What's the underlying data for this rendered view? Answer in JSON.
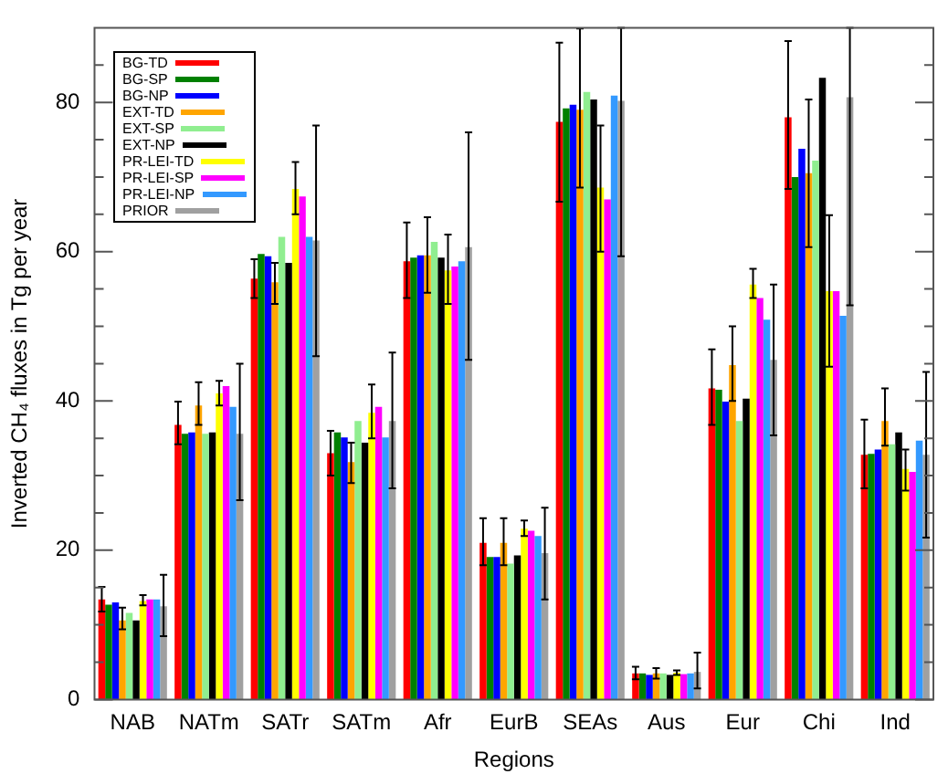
{
  "chart_data": {
    "type": "bar",
    "xlabel": "Regions",
    "ylabel": "Inverted CH₄ fluxes in Tg per year",
    "categories": [
      "NAB",
      "NATm",
      "SATr",
      "SATm",
      "Afr",
      "EurB",
      "SEAs",
      "Aus",
      "Eur",
      "Chi",
      "Ind"
    ],
    "ylim": [
      0,
      90
    ],
    "yticks": [
      0,
      {
        "value": 5,
        "label": null
      },
      {
        "value": 10,
        "label": null
      },
      {
        "value": 15,
        "label": null
      },
      20,
      {
        "value": 25,
        "label": null
      },
      {
        "value": 30,
        "label": null
      },
      {
        "value": 35,
        "label": null
      },
      40,
      {
        "value": 45,
        "label": null
      },
      {
        "value": 50,
        "label": null
      },
      {
        "value": 55,
        "label": null
      },
      60,
      {
        "value": 65,
        "label": null
      },
      {
        "value": 70,
        "label": null
      },
      {
        "value": 75,
        "label": null
      },
      80,
      {
        "value": 85,
        "label": null
      }
    ],
    "grid": false,
    "legend": "top left",
    "series": [
      {
        "name": "BG-TD",
        "color": "#ff0000",
        "values": [
          13.4,
          36.8,
          56.4,
          33,
          58.7,
          21,
          77.4,
          3.5,
          41.7,
          78,
          32.8
        ],
        "errors": [
          [
            11.8,
            15.1
          ],
          [
            34.2,
            39.9
          ],
          [
            53.8,
            59
          ],
          [
            30,
            36
          ],
          [
            53.8,
            63.9
          ],
          [
            18,
            24.3
          ],
          [
            66.7,
            88
          ],
          [
            2.7,
            4.4
          ],
          [
            36.8,
            46.9
          ],
          [
            68.4,
            88.2
          ],
          [
            28.3,
            37.5
          ]
        ]
      },
      {
        "name": "BG-SP",
        "color": "#008000",
        "values": [
          12.7,
          35.6,
          59.7,
          35.8,
          59.2,
          19.1,
          79.2,
          3.5,
          41.5,
          70,
          32.9
        ]
      },
      {
        "name": "BG-NP",
        "color": "#0000ff",
        "values": [
          13,
          35.8,
          59.4,
          35.1,
          59.5,
          19.1,
          79.7,
          3.3,
          39.9,
          73.8,
          33.5
        ]
      },
      {
        "name": "EXT-TD",
        "color": "#ffa500",
        "values": [
          10.6,
          39.4,
          55.9,
          31.8,
          59.5,
          21,
          79,
          3.5,
          44.8,
          70.5,
          37.3
        ],
        "errors": [
          [
            9.4,
            12.3
          ],
          [
            36.8,
            42.5
          ],
          [
            53,
            58.5
          ],
          [
            29,
            34.4
          ],
          [
            54.5,
            64.6
          ],
          [
            18,
            24.3
          ],
          [
            68.6,
            89.9
          ],
          [
            2.8,
            4.2
          ],
          [
            40,
            50
          ],
          [
            60.6,
            80.4
          ],
          [
            34,
            41.7
          ]
        ]
      },
      {
        "name": "EXT-SP",
        "color": "#90ee90",
        "values": [
          11.6,
          35.6,
          62,
          37.3,
          61.3,
          18.2,
          81.4,
          3.5,
          37.3,
          72.2,
          34.2
        ]
      },
      {
        "name": "EXT-NP",
        "color": "#000000",
        "values": [
          10.6,
          35.8,
          58.5,
          34.4,
          59.2,
          19.3,
          80.4,
          3.3,
          40.3,
          83.3,
          35.8
        ]
      },
      {
        "name": "PR-LEI-TD",
        "color": "#ffff00",
        "values": [
          13.2,
          41,
          68.4,
          38.4,
          57.5,
          22.9,
          68.6,
          3.6,
          55.6,
          54.7,
          30.9
        ],
        "errors": [
          [
            12.6,
            14
          ],
          [
            39.4,
            42.7
          ],
          [
            65,
            72
          ],
          [
            35,
            42.2
          ],
          [
            53,
            62.3
          ],
          [
            21.9,
            24
          ],
          [
            60,
            76.9
          ],
          [
            3.3,
            3.9
          ],
          [
            53.8,
            57.7
          ],
          [
            44.6,
            64.9
          ],
          [
            28,
            33.5
          ]
        ]
      },
      {
        "name": "PR-LEI-SP",
        "color": "#ff00ff",
        "values": [
          13.4,
          42,
          67.4,
          39.2,
          58,
          22.6,
          67,
          3.4,
          53.8,
          54.7,
          30.5
        ]
      },
      {
        "name": "PR-LEI-NP",
        "color": "#3399ff",
        "values": [
          13.4,
          39.2,
          62,
          35.1,
          58.7,
          21.9,
          80.9,
          3.5,
          50.9,
          51.4,
          34.7
        ]
      },
      {
        "name": "PRIOR",
        "color": "#a0a0a0",
        "values": [
          12.5,
          35.6,
          61.5,
          37.3,
          60.6,
          19.6,
          80.2,
          3.7,
          45.5,
          80.7,
          32.8
        ],
        "errors": [
          [
            8.5,
            16.7
          ],
          [
            26.7,
            45
          ],
          [
            46,
            76.9
          ],
          [
            28.3,
            46.5
          ],
          [
            45.5,
            76
          ],
          [
            13.4,
            25.7
          ],
          [
            59.4,
            90
          ],
          [
            1.5,
            6.3
          ],
          [
            35.4,
            55.6
          ],
          [
            52.8,
            90
          ],
          [
            21.7,
            43.9
          ]
        ]
      }
    ]
  }
}
